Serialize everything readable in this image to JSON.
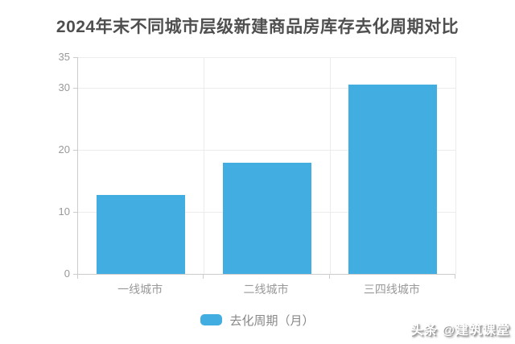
{
  "title": {
    "text": "2024年末不同城市层级新建商品房库存去化周期对比"
  },
  "watermark": {
    "text": "头条 @建筑课堂"
  },
  "colors": {
    "bar": "#42ADE0",
    "title_text": "#4F4F4F",
    "axis_text": "#999999",
    "legend_text": "#888888",
    "grid_line": "#ECECEC",
    "axis_line": "#CCCCCC"
  },
  "chart_data": {
    "type": "bar",
    "title": "2024年末不同城市层级新建商品房库存去化周期对比",
    "categories": [
      "一线城市",
      "二线城市",
      "三四线城市"
    ],
    "series": [
      {
        "name": "去化周期（月）",
        "values": [
          12.8,
          18,
          30.6
        ]
      }
    ],
    "xlabel": "",
    "ylabel": "",
    "ylim": [
      0,
      35
    ],
    "yticks": [
      0,
      10,
      20,
      30,
      35
    ],
    "grid": true,
    "legend_position": "bottom",
    "bar_color": "#42ADE0"
  }
}
